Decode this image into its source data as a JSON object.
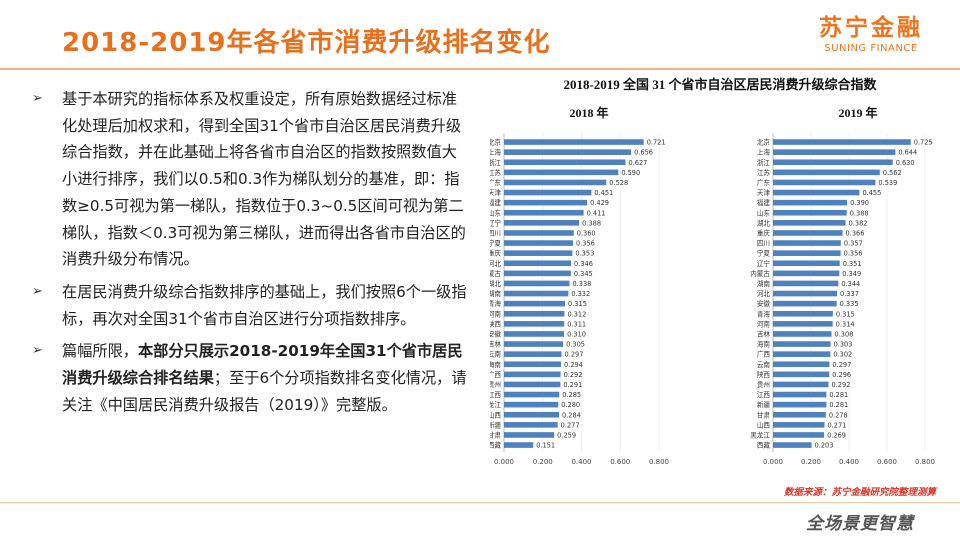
{
  "page": {
    "title": "2018-2019年各省市消费升级排名变化"
  },
  "logo": {
    "cn": "苏宁金融",
    "en": "SUNING FINANCE"
  },
  "bullets": [
    {
      "arrow": "➢",
      "parts": [
        {
          "text": "基于本研究的指标体系及权重设定，所有原始数据经过标准化处理后加权求和，得到全国31个省市自治区居民消费升级综合指数，并在此基础上将各省市自治区的指数按照数值大小进行排序，我们以0.5和0.3作为梯队划分的基准，即：指数≥0.5可视为第一梯队，指数位于0.3~0.5区间可视为第二梯队，指数＜0.3可视为第三梯队，进而得出各省市自治区的消费升级分布情况。",
          "bold": false
        }
      ]
    },
    {
      "arrow": "➢",
      "parts": [
        {
          "text": "在居民消费升级综合指数排序的基础上，我们按照6个一级指标，再次对全国31个省市自治区进行分项指数排序。",
          "bold": false
        }
      ]
    },
    {
      "arrow": "➢",
      "parts": [
        {
          "text": "篇幅所限，",
          "bold": false
        },
        {
          "text": "本部分只展示2018-2019年全国31个省市居民消费升级综合排名结果",
          "bold": true
        },
        {
          "text": "；至于6个分项指数排名变化情况，请关注《中国居民消费升级报告（2019）》完整版。",
          "bold": false
        }
      ]
    }
  ],
  "chart_data": [
    {
      "type": "bar",
      "orientation": "horizontal",
      "suptitle": "2018-2019 全国 31 个省市自治区居民消费升级综合指数",
      "title": "2018 年",
      "categories": [
        "北京",
        "上海",
        "浙江",
        "江苏",
        "广东",
        "天津",
        "福建",
        "山东",
        "辽宁",
        "四川",
        "宁夏",
        "重庆",
        "河北",
        "内蒙古",
        "湖北",
        "湖南",
        "青海",
        "河南",
        "陕西",
        "安徽",
        "吉林",
        "云南",
        "海南",
        "广西",
        "贵州",
        "江西",
        "黑龙江",
        "山西",
        "新疆",
        "甘肃",
        "西藏"
      ],
      "values": [
        0.721,
        0.656,
        0.627,
        0.59,
        0.528,
        0.451,
        0.429,
        0.411,
        0.388,
        0.36,
        0.356,
        0.353,
        0.346,
        0.345,
        0.338,
        0.332,
        0.315,
        0.312,
        0.311,
        0.31,
        0.305,
        0.297,
        0.294,
        0.292,
        0.291,
        0.285,
        0.28,
        0.284,
        0.277,
        0.259,
        0.151
      ],
      "xlim": [
        0,
        0.8
      ],
      "xticks": [
        "0.000",
        "0.200",
        "0.400",
        "0.600",
        "0.800"
      ],
      "color": "#4f81bd"
    },
    {
      "type": "bar",
      "orientation": "horizontal",
      "title": "2019 年",
      "categories": [
        "北京",
        "上海",
        "浙江",
        "江苏",
        "广东",
        "天津",
        "福建",
        "山东",
        "湖北",
        "重庆",
        "四川",
        "宁夏",
        "辽宁",
        "内蒙古",
        "湖南",
        "河北",
        "安徽",
        "青海",
        "河南",
        "吉林",
        "海南",
        "广西",
        "云南",
        "陕西",
        "贵州",
        "江西",
        "新疆",
        "甘肃",
        "山西",
        "黑龙江",
        "西藏"
      ],
      "values": [
        0.725,
        0.644,
        0.63,
        0.562,
        0.539,
        0.455,
        0.39,
        0.388,
        0.382,
        0.366,
        0.357,
        0.356,
        0.351,
        0.349,
        0.344,
        0.337,
        0.335,
        0.315,
        0.314,
        0.308,
        0.303,
        0.302,
        0.297,
        0.296,
        0.292,
        0.281,
        0.281,
        0.278,
        0.271,
        0.269,
        0.203
      ],
      "xlim": [
        0,
        0.8
      ],
      "xticks": [
        "0.000",
        "0.200",
        "0.400",
        "0.600",
        "0.800"
      ],
      "color": "#4f81bd"
    }
  ],
  "source": "数据来源：苏宁金融研究院整理测算",
  "footer": {
    "brand": "全场景更智慧"
  }
}
